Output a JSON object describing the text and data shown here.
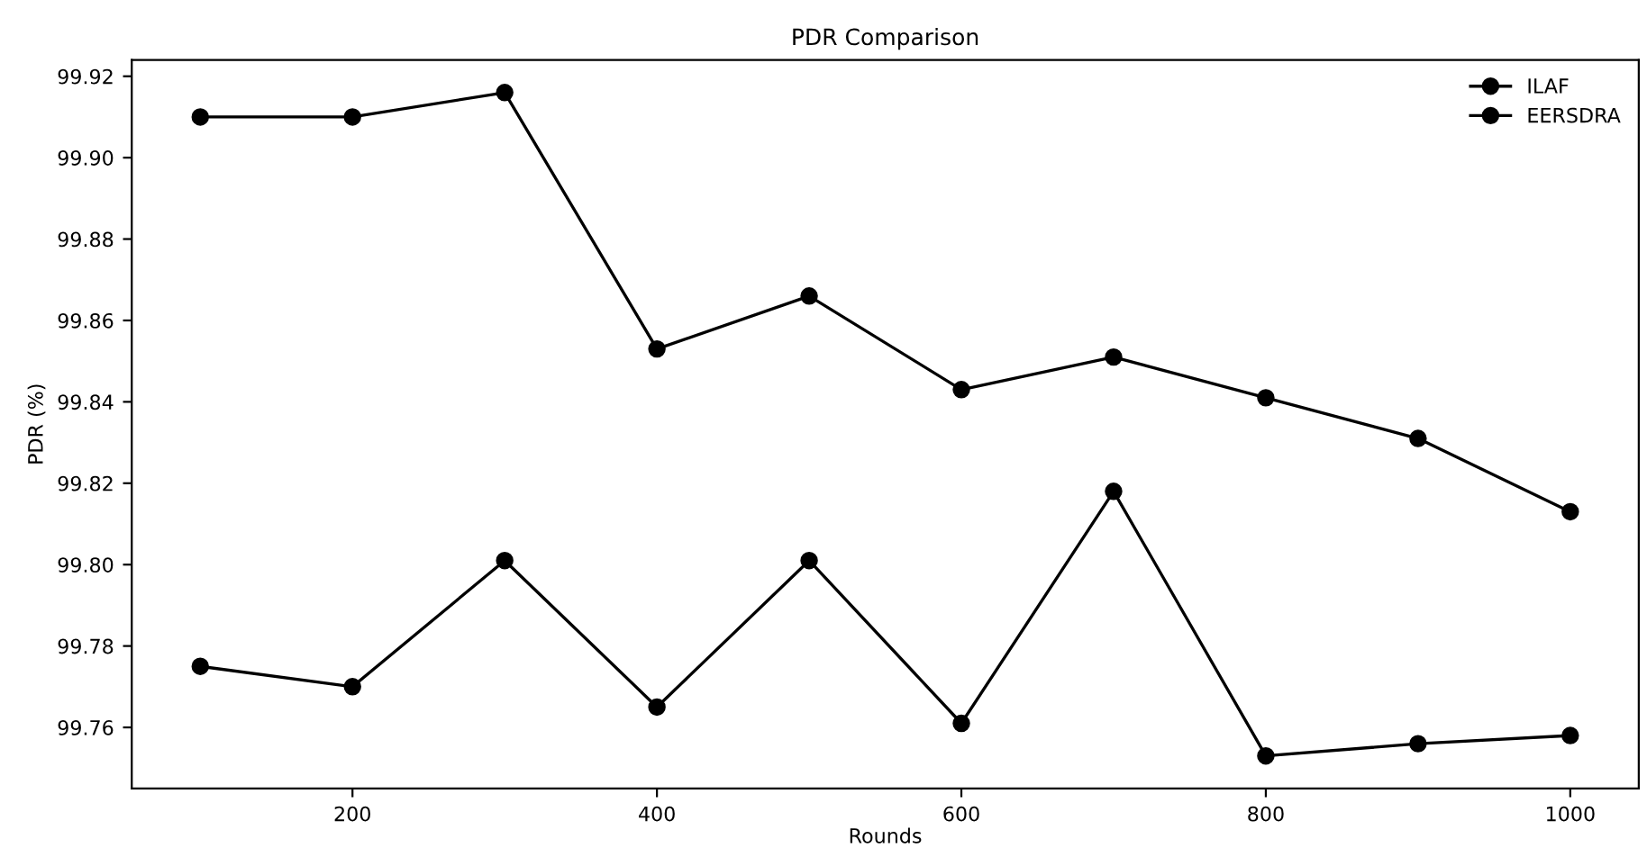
{
  "chart_data": {
    "type": "line",
    "title": "PDR Comparison",
    "xlabel": "Rounds",
    "ylabel": "PDR (%)",
    "x": [
      100,
      200,
      300,
      400,
      500,
      600,
      700,
      800,
      900,
      1000
    ],
    "series": [
      {
        "name": "ILAF",
        "color": "#000000",
        "values": [
          99.91,
          99.91,
          99.916,
          99.853,
          99.866,
          99.843,
          99.851,
          99.841,
          99.831,
          99.813
        ]
      },
      {
        "name": "EERSDRA",
        "color": "#000000",
        "values": [
          99.775,
          99.77,
          99.801,
          99.765,
          99.801,
          99.761,
          99.818,
          99.753,
          99.756,
          99.758
        ]
      }
    ],
    "xlim": [
      55,
      1045
    ],
    "ylim": [
      99.745,
      99.924
    ],
    "xticks": [
      200,
      400,
      600,
      800,
      1000
    ],
    "yticks": [
      {
        "value": 99.76,
        "label": "99.76"
      },
      {
        "value": 99.78,
        "label": "99.78"
      },
      {
        "value": 99.8,
        "label": "99.80"
      },
      {
        "value": 99.82,
        "label": "99.82"
      },
      {
        "value": 99.84,
        "label": "99.84"
      },
      {
        "value": 99.86,
        "label": "99.86"
      },
      {
        "value": 99.88,
        "label": "99.88"
      },
      {
        "value": 99.9,
        "label": "99.90"
      },
      {
        "value": 99.92,
        "label": "99.92"
      }
    ],
    "marker": "circle",
    "line_style": "solid",
    "legend": "top right",
    "grid": false
  }
}
